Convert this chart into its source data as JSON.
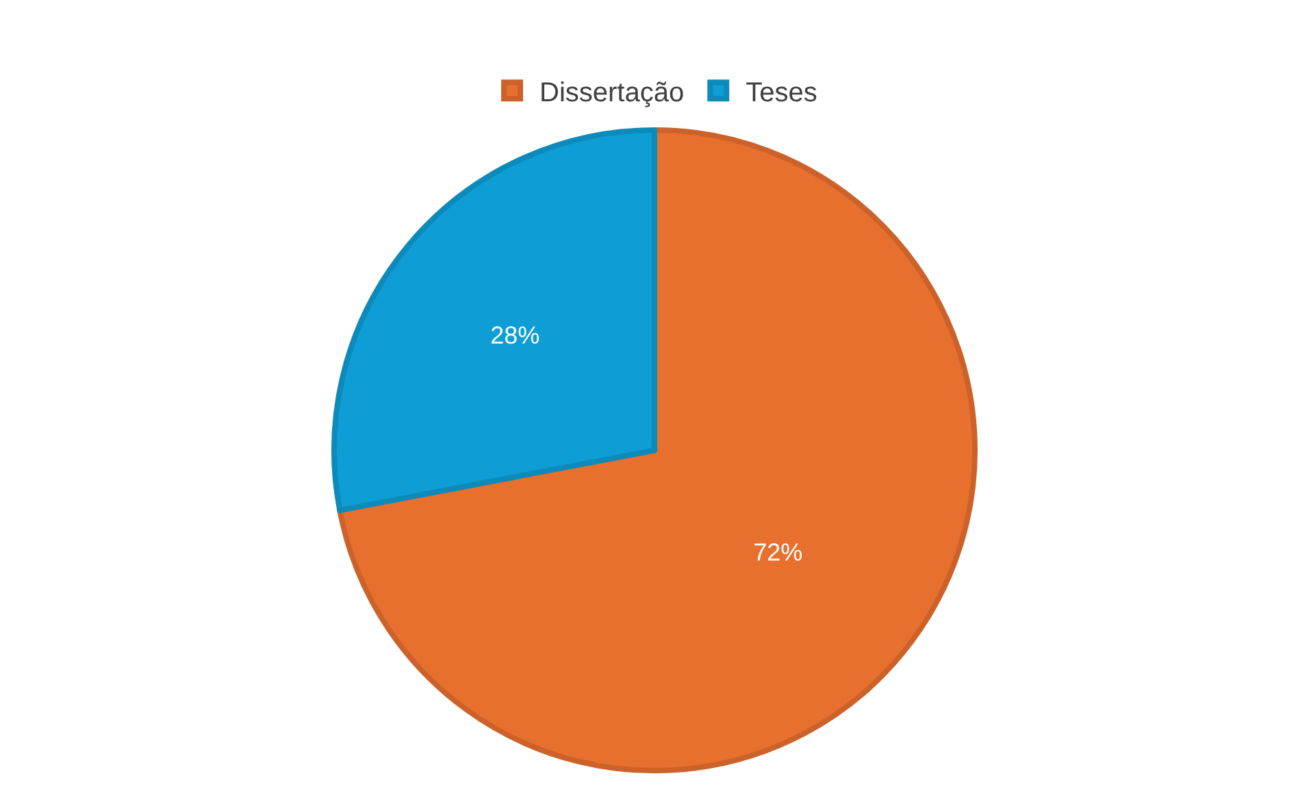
{
  "chart_data": {
    "type": "pie",
    "categories": [
      "Dissertação",
      "Teses"
    ],
    "values": [
      72,
      28
    ],
    "colors": [
      "#e8702f",
      "#0e9dd4"
    ],
    "value_labels": [
      "72%",
      "28%"
    ],
    "legend": "top"
  }
}
